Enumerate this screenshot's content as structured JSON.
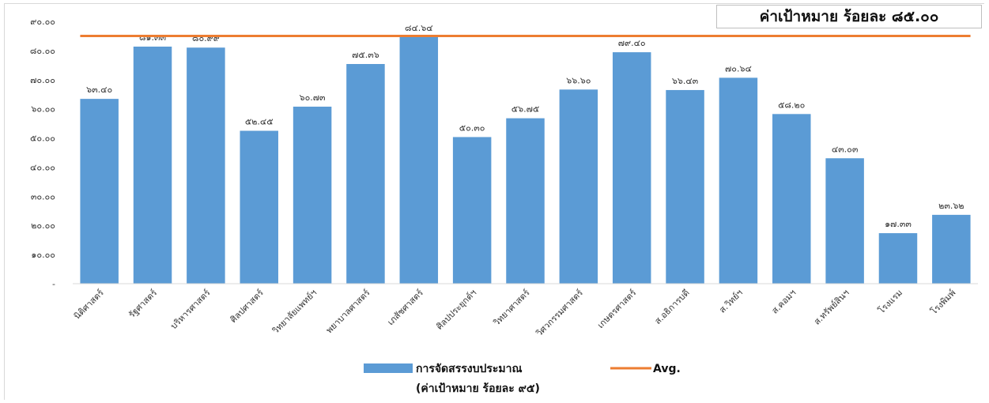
{
  "chart_data": {
    "type": "bar",
    "title": "",
    "target_label": "ค่าเป้าหมาย ร้อยละ ๘๕.๐๐",
    "categories": [
      "นิติศาสตร์",
      "รัฐศาสตร์",
      "บริหารศาสตร์",
      "ศิลปศาสตร์",
      "วิทยาลัยแพทย์ฯ",
      "พยาบาลศาสตร์",
      "เภสัชศาสตร์",
      "ศิลปประยุกต์ฯ",
      "วิทยาศาสตร์",
      "วิศวกรรมศาสตร์",
      "เกษตรศาสตร์",
      "ส.อธิการบดี",
      "ส.วิทย์ฯ",
      "ส.คอมฯ",
      "ส.ทรัพย์สินฯ",
      "โรงแรม",
      "โรงพิมพ์"
    ],
    "series": [
      {
        "name": "การจัดสรรงบประมาณ",
        "name_line2": "(ค่าเป้าหมาย ร้อยละ ๙๕)",
        "color": "#5b9bd5",
        "values": [
          63.4,
          81.33,
          80.99,
          52.45,
          60.73,
          75.36,
          84.64,
          50.3,
          56.75,
          66.6,
          79.4,
          66.43,
          70.64,
          58.2,
          43.03,
          17.33,
          23.62
        ],
        "labels": [
          "๖๓.๔๐",
          "๘๑.๓๓",
          "๘๐.๙๙",
          "๕๒.๔๕",
          "๖๐.๗๓",
          "๗๕.๓๖",
          "๘๔.๖๔",
          "๕๐.๓๐",
          "๕๖.๗๕",
          "๖๖.๖๐",
          "๗๙.๔๐",
          "๖๖.๔๓",
          "๗๐.๖๔",
          "๕๘.๒๐",
          "๔๓.๐๓",
          "๑๗.๓๓",
          "๒๓.๖๒"
        ]
      },
      {
        "name": "Avg.",
        "type": "line",
        "color": "#ed7d31",
        "value": 85.0
      }
    ],
    "y_ticks": [
      0,
      10,
      20,
      30,
      40,
      50,
      60,
      70,
      80,
      90
    ],
    "y_tick_labels": [
      "-",
      "๑๐.๐๐",
      "๒๐.๐๐",
      "๓๐.๐๐",
      "๔๐.๐๐",
      "๕๐.๐๐",
      "๖๐.๐๐",
      "๗๐.๐๐",
      "๘๐.๐๐",
      "๙๐.๐๐"
    ],
    "ylim": [
      0,
      90
    ],
    "grid": false,
    "legend_position": "bottom"
  }
}
